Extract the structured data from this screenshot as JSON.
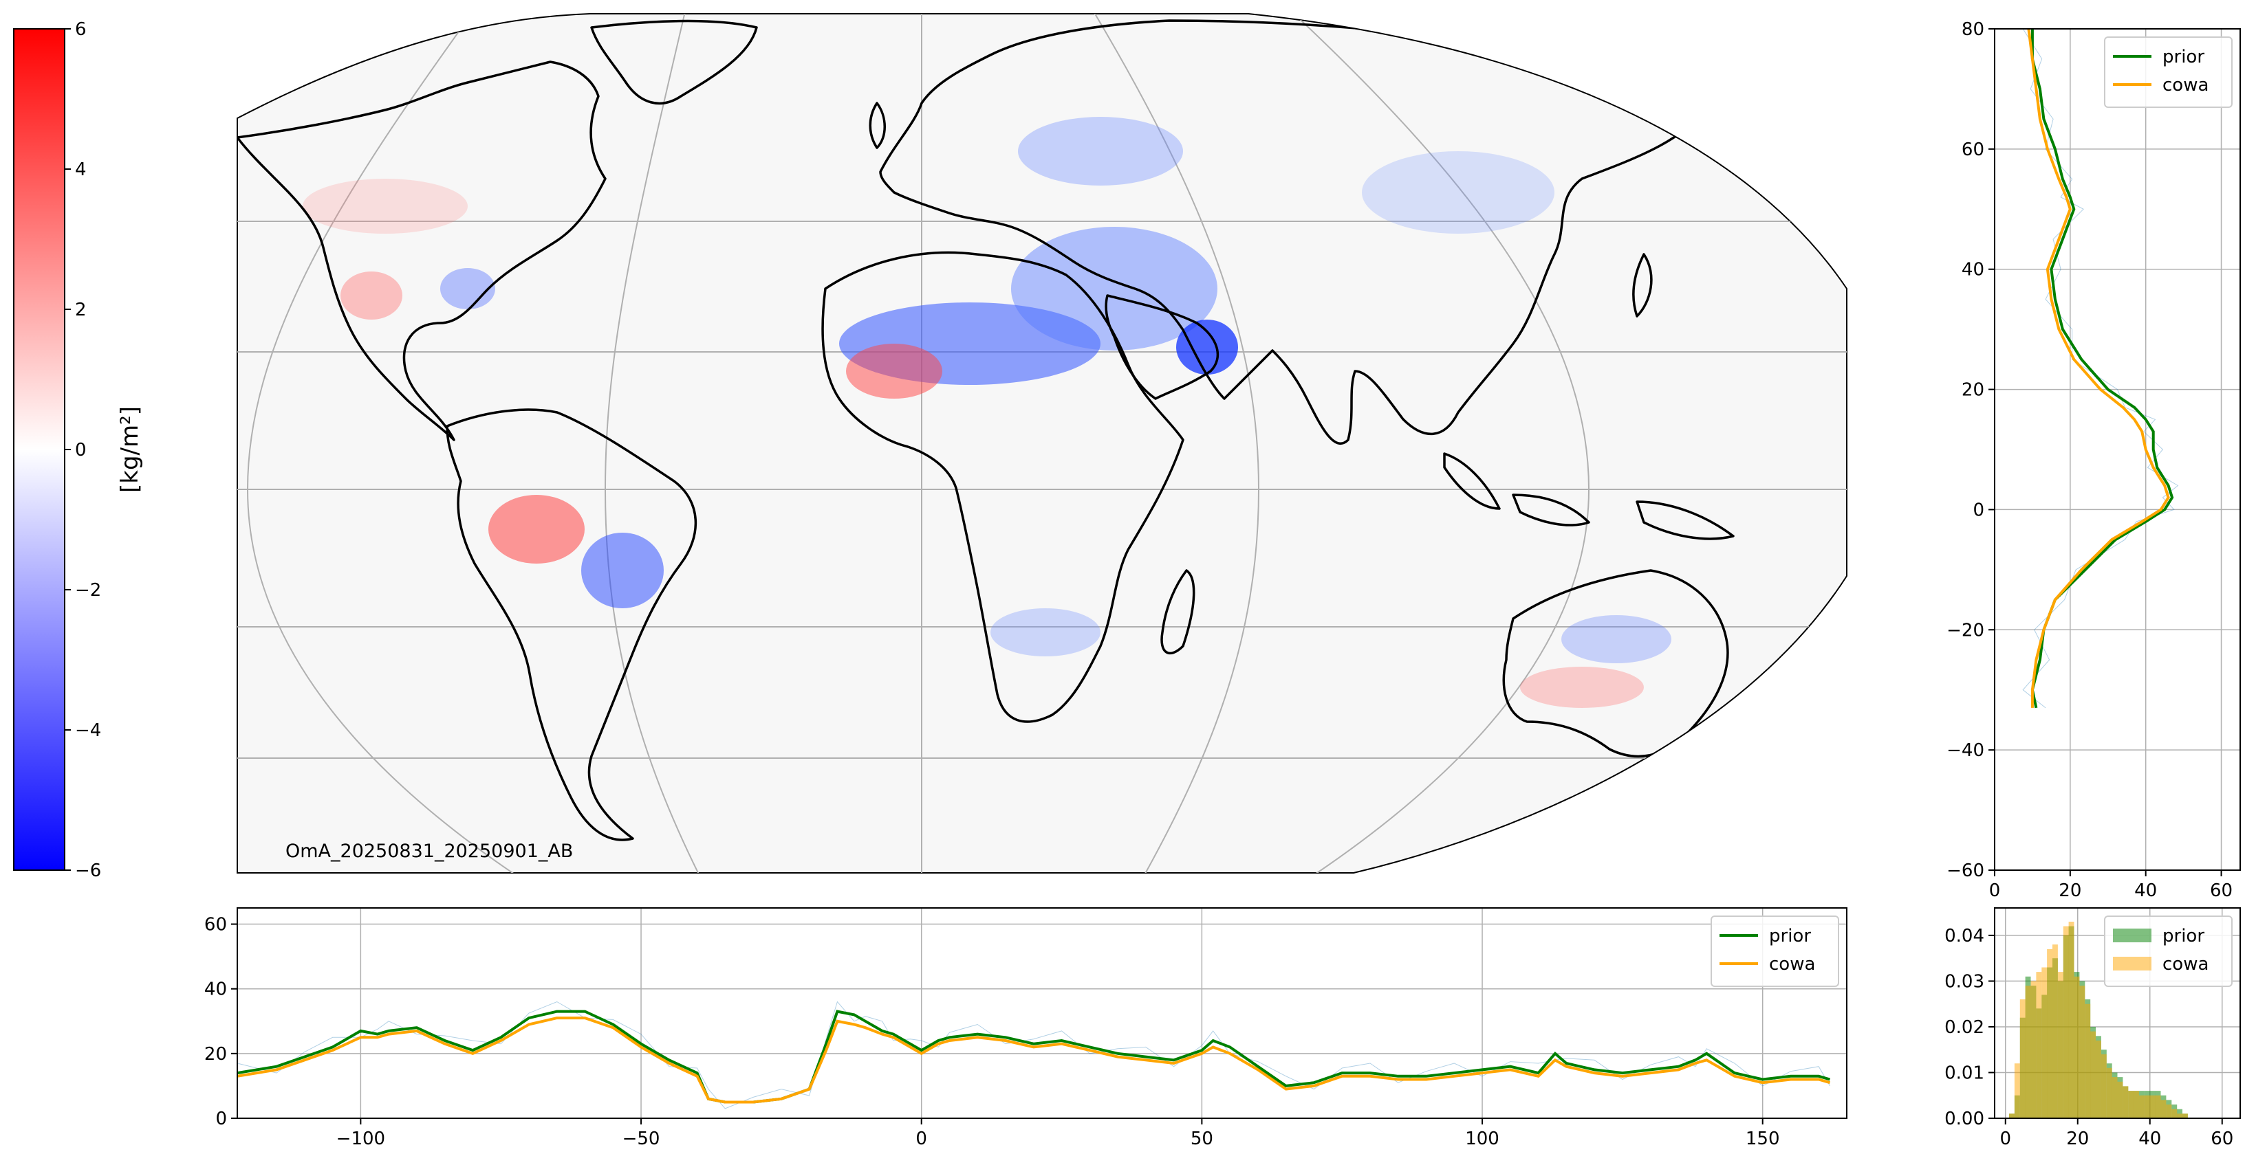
{
  "figure": {
    "annotation": "OmA_20250831_20250901_AB",
    "colorbar": {
      "label": "[kg/m²]",
      "vmin": -6,
      "vmax": 6,
      "ticks": [
        "6",
        "4",
        "2",
        "0",
        "−2",
        "−4",
        "−6"
      ],
      "colormap": "bwr"
    }
  },
  "colors": {
    "prior": "#008000",
    "cowa": "#ffa500",
    "raw": "#1f77b4",
    "grid": "#b0b0b0",
    "coast": "#000000",
    "ocean": "#f7f7f7"
  },
  "chart_data": [
    {
      "id": "map",
      "type": "heatmap",
      "projection": "Mollweide",
      "annotation": "OmA_20250831_20250901_AB",
      "colorbar_label": "[kg/m²]",
      "color_range": [
        -6,
        6
      ],
      "coastlines": true,
      "grid": true
    },
    {
      "id": "lat_profile",
      "type": "line",
      "orientation": "vertical",
      "xlim": [
        0,
        65
      ],
      "ylim": [
        -60,
        80
      ],
      "xticks": [
        "0",
        "20",
        "40",
        "60"
      ],
      "yticks": [
        "80",
        "60",
        "40",
        "20",
        "0",
        "−20",
        "−40",
        "−60"
      ],
      "grid": true,
      "legend": "top-right",
      "series": [
        {
          "name": "prior",
          "lat": [
            80,
            75,
            70,
            65,
            60,
            55,
            52,
            50,
            45,
            40,
            35,
            30,
            25,
            20,
            17,
            15,
            13,
            10,
            7,
            4,
            2,
            0,
            -2,
            -5,
            -10,
            -15,
            -20,
            -25,
            -30,
            -33
          ],
          "value": [
            10,
            10,
            12,
            13,
            16,
            18,
            20,
            21,
            18,
            15,
            16,
            18,
            23,
            30,
            37,
            40,
            42,
            42,
            43,
            46,
            47,
            45,
            40,
            32,
            24,
            16,
            13,
            12,
            10,
            11
          ]
        },
        {
          "name": "cowa",
          "lat": [
            80,
            75,
            70,
            65,
            60,
            55,
            52,
            50,
            45,
            40,
            35,
            30,
            25,
            20,
            17,
            15,
            13,
            10,
            7,
            4,
            2,
            0,
            -2,
            -5,
            -10,
            -15,
            -20,
            -25,
            -30,
            -33
          ],
          "value": [
            9,
            10,
            11,
            12,
            14,
            17,
            19,
            20,
            17,
            14,
            15,
            17,
            21,
            28,
            34,
            37,
            39,
            40,
            42,
            45,
            46,
            44,
            39,
            31,
            23,
            16,
            13,
            11,
            10,
            10
          ]
        }
      ]
    },
    {
      "id": "lon_profile",
      "type": "line",
      "xlim": [
        -122,
        165
      ],
      "ylim": [
        0,
        65
      ],
      "xticks": [
        "−100",
        "−50",
        "0",
        "50",
        "100",
        "150"
      ],
      "yticks": [
        "0",
        "20",
        "40",
        "60"
      ],
      "grid": true,
      "legend": "top-right",
      "series": [
        {
          "name": "prior",
          "x": [
            -122,
            -115,
            -110,
            -105,
            -100,
            -97,
            -95,
            -90,
            -85,
            -80,
            -75,
            -70,
            -65,
            -60,
            -55,
            -50,
            -45,
            -40,
            -38,
            -35,
            -30,
            -25,
            -20,
            -17,
            -15,
            -12,
            -10,
            -7,
            -5,
            -2,
            0,
            3,
            5,
            10,
            15,
            20,
            25,
            30,
            35,
            40,
            45,
            50,
            52,
            55,
            60,
            65,
            70,
            75,
            80,
            85,
            90,
            95,
            100,
            105,
            110,
            113,
            115,
            120,
            125,
            130,
            135,
            138,
            140,
            145,
            150,
            155,
            160,
            162
          ],
          "y": [
            14,
            16,
            19,
            22,
            27,
            26,
            27,
            28,
            24,
            21,
            25,
            31,
            33,
            33,
            29,
            23,
            18,
            14,
            6,
            5,
            5,
            6,
            9,
            23,
            33,
            32,
            30,
            27,
            26,
            23,
            21,
            24,
            25,
            26,
            25,
            23,
            24,
            22,
            20,
            19,
            18,
            21,
            24,
            22,
            16,
            10,
            11,
            14,
            14,
            13,
            13,
            14,
            15,
            16,
            14,
            20,
            17,
            15,
            14,
            15,
            16,
            18,
            20,
            14,
            12,
            13,
            13,
            12
          ]
        },
        {
          "name": "cowa",
          "x": [
            -122,
            -115,
            -110,
            -105,
            -100,
            -97,
            -95,
            -90,
            -85,
            -80,
            -75,
            -70,
            -65,
            -60,
            -55,
            -50,
            -45,
            -40,
            -38,
            -35,
            -30,
            -25,
            -20,
            -17,
            -15,
            -12,
            -10,
            -7,
            -5,
            -2,
            0,
            3,
            5,
            10,
            15,
            20,
            25,
            30,
            35,
            40,
            45,
            50,
            52,
            55,
            60,
            65,
            70,
            75,
            80,
            85,
            90,
            95,
            100,
            105,
            110,
            113,
            115,
            120,
            125,
            130,
            135,
            138,
            140,
            145,
            150,
            155,
            160,
            162
          ],
          "y": [
            13,
            15,
            18,
            21,
            25,
            25,
            26,
            27,
            23,
            20,
            24,
            29,
            31,
            31,
            28,
            22,
            17,
            13,
            6,
            5,
            5,
            6,
            9,
            21,
            30,
            29,
            28,
            26,
            25,
            22,
            20,
            23,
            24,
            25,
            24,
            22,
            23,
            21,
            19,
            18,
            17,
            20,
            22,
            20,
            15,
            9,
            10,
            13,
            13,
            12,
            12,
            13,
            14,
            15,
            13,
            18,
            16,
            14,
            13,
            14,
            15,
            17,
            18,
            13,
            11,
            12,
            12,
            11
          ]
        }
      ]
    },
    {
      "id": "histogram",
      "type": "bar",
      "xlim": [
        -3,
        65
      ],
      "ylim": [
        0,
        0.046
      ],
      "xticks": [
        "0",
        "20",
        "40",
        "60"
      ],
      "yticks": [
        "0.00",
        "0.01",
        "0.02",
        "0.03",
        "0.04"
      ],
      "grid": true,
      "legend": "top-right",
      "bin_width": 1.5,
      "bin_start": 1,
      "series": [
        {
          "name": "prior",
          "values": [
            0.001,
            0.005,
            0.022,
            0.031,
            0.029,
            0.024,
            0.027,
            0.033,
            0.035,
            0.03,
            0.04,
            0.042,
            0.032,
            0.03,
            0.026,
            0.02,
            0.018,
            0.015,
            0.012,
            0.01,
            0.009,
            0.007,
            0.006,
            0.006,
            0.006,
            0.006,
            0.006,
            0.006,
            0.005,
            0.004,
            0.003,
            0.002,
            0.001,
            0.0
          ]
        },
        {
          "name": "cowa",
          "values": [
            0.001,
            0.012,
            0.026,
            0.029,
            0.03,
            0.032,
            0.033,
            0.037,
            0.038,
            0.032,
            0.042,
            0.043,
            0.031,
            0.029,
            0.025,
            0.019,
            0.017,
            0.014,
            0.011,
            0.009,
            0.008,
            0.007,
            0.006,
            0.006,
            0.005,
            0.005,
            0.005,
            0.005,
            0.004,
            0.003,
            0.002,
            0.001,
            0.001,
            0.0
          ]
        }
      ]
    }
  ]
}
